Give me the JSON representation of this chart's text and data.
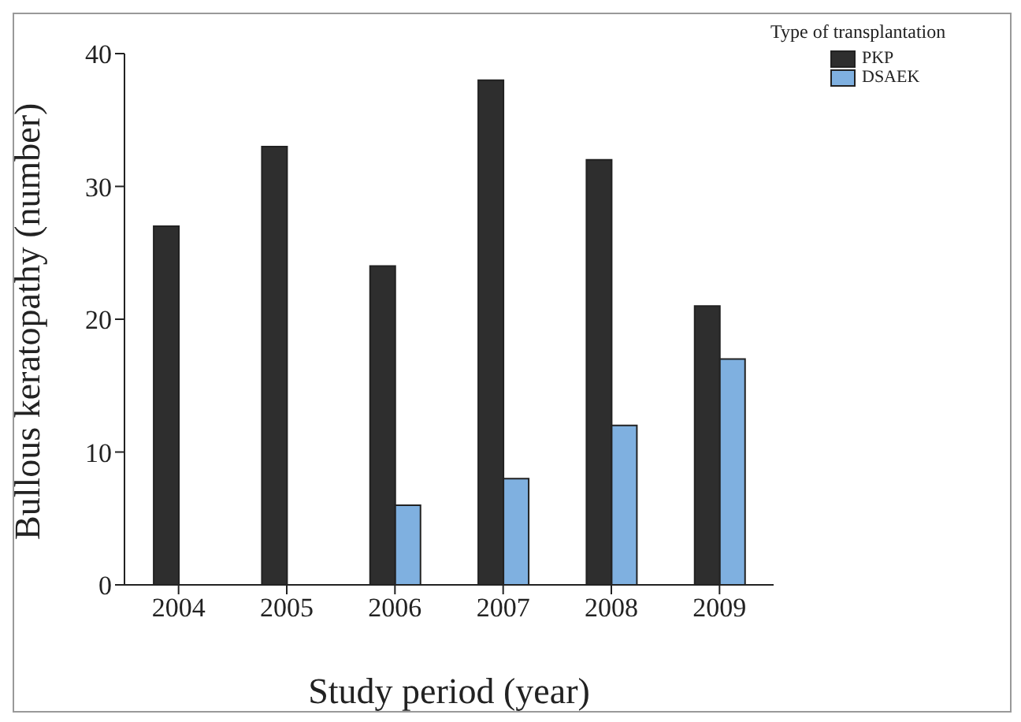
{
  "chart_data": {
    "type": "bar",
    "xlabel": "Study period (year)",
    "ylabel": "Bullous keratopathy (number)",
    "legend_title": "Type of transplantation",
    "categories": [
      "2004",
      "2005",
      "2006",
      "2007",
      "2008",
      "2009"
    ],
    "series": [
      {
        "name": "PKP",
        "color": "#2e2e2e",
        "values": [
          27,
          33,
          24,
          38,
          32,
          21
        ]
      },
      {
        "name": "DSAEK",
        "color": "#7fb0e0",
        "values": [
          0,
          0,
          6,
          8,
          12,
          17
        ]
      }
    ],
    "ylim": [
      0,
      40
    ],
    "yticks": [
      0,
      10,
      20,
      30,
      40
    ],
    "legend": "top right"
  }
}
